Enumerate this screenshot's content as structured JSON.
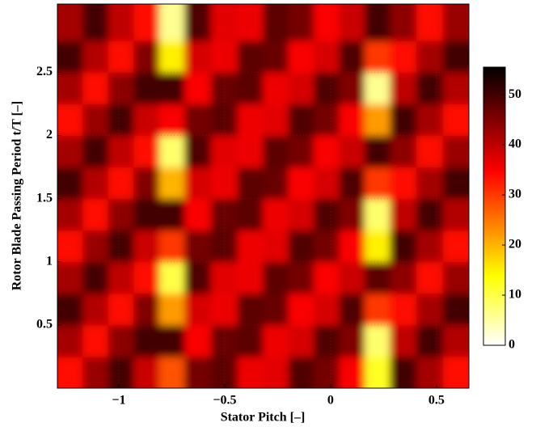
{
  "chart_data": {
    "type": "contour",
    "xlabel": "Stator Pitch [–]",
    "ylabel": "Rotor Blade Passing Period t/T [–]",
    "x": [
      -1.23,
      -1.11,
      -0.99,
      -0.87,
      -0.75,
      -0.63,
      -0.5,
      -0.38,
      -0.26,
      -0.14,
      -0.02,
      0.1,
      0.22,
      0.34,
      0.47,
      0.59
    ],
    "y": [
      0.125,
      0.375,
      0.625,
      0.875,
      1.125,
      1.375,
      1.625,
      1.875,
      2.125,
      2.375,
      2.625,
      2.875
    ],
    "z": [
      [
        34,
        43,
        50,
        39,
        28,
        46,
        48,
        36,
        37,
        49,
        46,
        35,
        12,
        50,
        42,
        34
      ],
      [
        42,
        34,
        44,
        50,
        50,
        35,
        47,
        48,
        36,
        38,
        49,
        45,
        8,
        40,
        50,
        41
      ],
      [
        50,
        41,
        34,
        45,
        22,
        38,
        36,
        48,
        47,
        35,
        38,
        49,
        30,
        34,
        42,
        50
      ],
      [
        42,
        50,
        40,
        34,
        10,
        49,
        37,
        36,
        48,
        46,
        35,
        39,
        48,
        44,
        34,
        43
      ],
      [
        34,
        43,
        50,
        39,
        30,
        46,
        48,
        36,
        37,
        49,
        46,
        35,
        15,
        50,
        42,
        34
      ],
      [
        42,
        34,
        44,
        50,
        50,
        35,
        47,
        48,
        36,
        38,
        49,
        45,
        8,
        40,
        50,
        41
      ],
      [
        50,
        41,
        34,
        45,
        20,
        38,
        36,
        48,
        47,
        35,
        38,
        49,
        30,
        34,
        42,
        50
      ],
      [
        42,
        50,
        40,
        34,
        8,
        49,
        37,
        36,
        48,
        46,
        35,
        39,
        50,
        44,
        34,
        43
      ],
      [
        34,
        43,
        50,
        39,
        35,
        46,
        48,
        36,
        37,
        49,
        46,
        35,
        22,
        50,
        42,
        34
      ],
      [
        42,
        34,
        44,
        50,
        50,
        35,
        47,
        48,
        36,
        38,
        49,
        45,
        6,
        40,
        50,
        41
      ],
      [
        50,
        41,
        34,
        45,
        15,
        38,
        36,
        48,
        47,
        35,
        38,
        49,
        30,
        34,
        42,
        50
      ],
      [
        42,
        50,
        40,
        34,
        6,
        49,
        37,
        36,
        48,
        46,
        35,
        39,
        50,
        44,
        34,
        43
      ]
    ],
    "xlim": [
      -1.29,
      0.653
    ],
    "ylim": [
      0,
      3.04
    ],
    "xticks": [
      {
        "value": -1,
        "label": "−1"
      },
      {
        "value": -0.5,
        "label": "−0.5"
      },
      0,
      0.5
    ],
    "yticks": [
      0.5,
      1,
      1.5,
      2,
      2.5
    ],
    "clim": [
      0,
      55.5
    ],
    "cticks": [
      0,
      10,
      20,
      30,
      40,
      50
    ],
    "colormap": "hot",
    "colormap_reversed": true,
    "grid": true
  }
}
